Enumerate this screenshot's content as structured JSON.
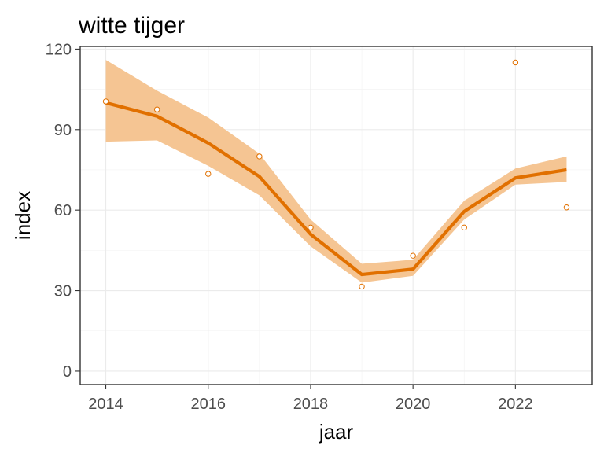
{
  "chart_data": {
    "type": "line",
    "title": "witte tijger",
    "xlabel": "jaar",
    "ylabel": "index",
    "xlim": [
      2013.5,
      2023.5
    ],
    "ylim": [
      -5,
      121
    ],
    "xticks": [
      2014,
      2016,
      2018,
      2020,
      2022
    ],
    "xtick_labels": [
      "2014",
      "2016",
      "2018",
      "2020",
      "2022"
    ],
    "yticks": [
      0,
      30,
      60,
      90,
      120
    ],
    "ytick_labels": [
      "0",
      "30",
      "60",
      "90",
      "120"
    ],
    "grid": true,
    "x": [
      2014,
      2015,
      2016,
      2017,
      2018,
      2019,
      2020,
      2021,
      2022,
      2023
    ],
    "smooth": [
      100,
      95,
      85,
      72.5,
      51,
      36,
      38,
      59.5,
      72,
      75
    ],
    "lower": [
      85.5,
      86,
      76.5,
      65.5,
      46.5,
      33,
      35.5,
      56.5,
      69.5,
      70.5
    ],
    "upper": [
      116,
      104.5,
      94.5,
      81,
      56.5,
      40,
      41.5,
      63.5,
      75.5,
      80
    ],
    "observed": [
      100.5,
      97.5,
      73.5,
      80,
      53.5,
      31.5,
      43,
      53.5,
      115,
      61
    ],
    "colors": {
      "line": "#e17000",
      "ribbon": "#f5c593",
      "points": "#e17000"
    }
  }
}
